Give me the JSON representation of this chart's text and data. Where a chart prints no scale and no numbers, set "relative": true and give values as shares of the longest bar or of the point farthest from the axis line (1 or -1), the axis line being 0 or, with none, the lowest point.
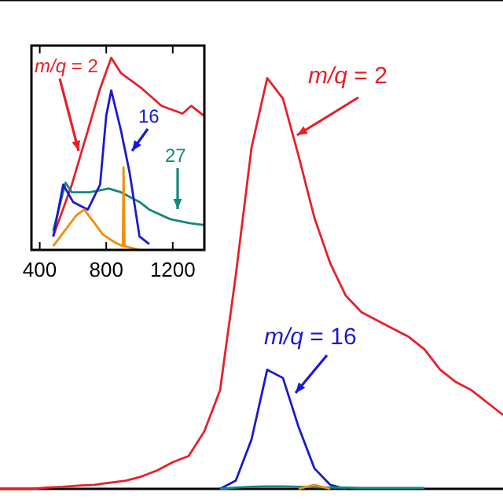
{
  "chart_data": [
    {
      "type": "line",
      "relative": true,
      "categories": [
        null,
        null,
        null,
        null,
        null,
        null,
        null,
        null,
        null,
        null,
        null,
        null,
        null,
        null,
        null,
        null,
        null,
        null,
        null,
        null,
        null,
        null,
        null,
        null,
        null,
        null,
        null,
        null,
        null,
        null,
        null,
        null,
        null
      ],
      "series": [
        {
          "color": "#e8202a",
          "values": [
            0,
            0,
            0,
            0.003,
            0.005,
            0.008,
            0.01,
            0.015,
            0.02,
            0.03,
            0.045,
            0.065,
            0.08,
            0.14,
            0.24,
            0.52,
            0.83,
            1,
            0.95,
            0.81,
            0.66,
            0.55,
            0.47,
            0.43,
            0.41,
            0.39,
            0.37,
            0.34,
            0.29,
            0.26,
            0.24,
            0.21,
            0.18
          ]
        },
        {
          "color": "#1a1ad0",
          "values": [
            null,
            null,
            null,
            null,
            null,
            null,
            null,
            null,
            null,
            null,
            null,
            null,
            null,
            null,
            0,
            0.02,
            0.12,
            0.29,
            0.27,
            0.15,
            0.05,
            0.01,
            0,
            null,
            null,
            null,
            null,
            null,
            null,
            null,
            null,
            null,
            null
          ]
        },
        {
          "color": "#14877a",
          "values": [
            null,
            null,
            null,
            null,
            null,
            null,
            null,
            null,
            null,
            null,
            null,
            null,
            null,
            null,
            0,
            0.003,
            0.005,
            0.006,
            0.006,
            0.005,
            0.004,
            0.003,
            0.003,
            0.002,
            0.002,
            0.002,
            0.002,
            0.002,
            null,
            null,
            null,
            null,
            null
          ]
        },
        {
          "color": "#f28c10",
          "values": [
            null,
            null,
            null,
            null,
            null,
            null,
            null,
            null,
            null,
            null,
            null,
            null,
            null,
            null,
            null,
            null,
            null,
            null,
            null,
            0,
            0.01,
            0,
            null,
            null,
            null,
            null,
            null,
            null,
            null,
            null,
            null,
            null,
            null
          ]
        }
      ],
      "annotations": [
        "m/q = 2",
        "m/q = 16"
      ]
    },
    {
      "type": "line",
      "relative": true,
      "tick_labels": "x",
      "xlim": [
        350,
        1390
      ],
      "xticks": [
        400,
        800,
        1200
      ],
      "series": [
        {
          "color": "#e8202a",
          "x": [
            481,
            593,
            689,
            763,
            830,
            889,
            1015,
            1133,
            1259,
            1311,
            1385
          ],
          "values": [
            0.07,
            0.34,
            0.62,
            0.84,
            1,
            0.92,
            0.84,
            0.75,
            0.71,
            0.75,
            0.7
          ]
        },
        {
          "color": "#14877a",
          "x": [
            481,
            555,
            593,
            700,
            815,
            889,
            1000,
            1059,
            1185,
            1300,
            1385
          ],
          "values": [
            0.1,
            0.35,
            0.3,
            0.3,
            0.32,
            0.3,
            0.25,
            0.21,
            0.16,
            0.14,
            0.13
          ]
        },
        {
          "color": "#1a1ad0",
          "x": [
            481,
            541,
            600,
            689,
            763,
            800,
            830,
            889,
            941,
            1000,
            1059
          ],
          "values": [
            0.07,
            0.34,
            0.25,
            0.21,
            0.34,
            0.7,
            0.83,
            0.62,
            0.4,
            0.07,
            0.03
          ]
        },
        {
          "color": "#f28c10",
          "x": [
            481,
            550,
            620,
            667,
            720,
            780,
            850,
            900,
            904,
            910,
            1000
          ],
          "values": [
            0.02,
            0.1,
            0.18,
            0.21,
            0.15,
            0.08,
            0.04,
            0.02,
            0.43,
            0.02,
            0
          ]
        }
      ],
      "annotations": [
        "m/q = 2",
        "16",
        "27"
      ]
    }
  ]
}
